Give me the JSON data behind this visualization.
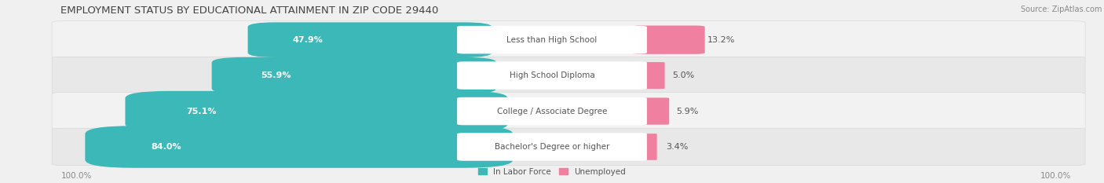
{
  "title": "EMPLOYMENT STATUS BY EDUCATIONAL ATTAINMENT IN ZIP CODE 29440",
  "source": "Source: ZipAtlas.com",
  "categories": [
    "Less than High School",
    "High School Diploma",
    "College / Associate Degree",
    "Bachelor's Degree or higher"
  ],
  "labor_force": [
    47.9,
    55.9,
    75.1,
    84.0
  ],
  "unemployed": [
    13.2,
    5.0,
    5.9,
    3.4
  ],
  "labor_force_color": "#3db8b8",
  "unemployed_color": "#f080a0",
  "row_bg_light": "#f2f2f2",
  "row_bg_dark": "#e8e8e8",
  "label_bg_color": "#ffffff",
  "axis_label_left": "100.0%",
  "axis_label_right": "100.0%",
  "legend_labor": "In Labor Force",
  "legend_unemployed": "Unemployed",
  "title_fontsize": 9.5,
  "source_fontsize": 7,
  "bar_label_fontsize": 8,
  "category_fontsize": 7.5,
  "legend_fontsize": 7.5,
  "axis_fontsize": 7.5,
  "max_pct": 100.0,
  "lf_inside_threshold": 20.0
}
